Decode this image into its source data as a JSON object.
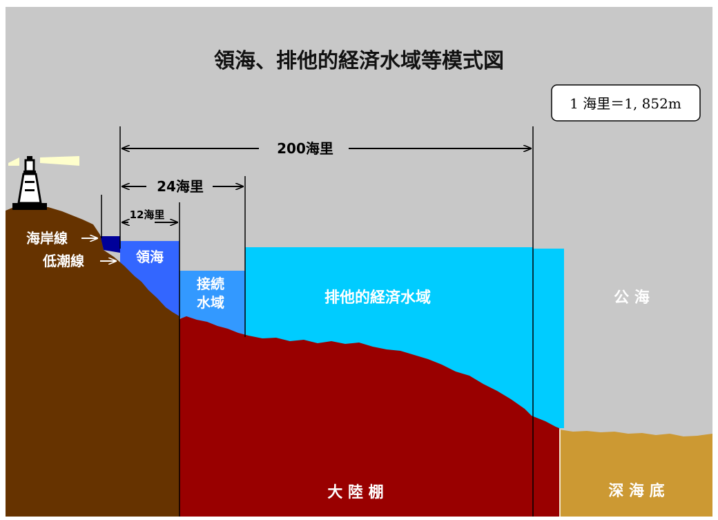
{
  "diagram": {
    "title": "領海、排他的経済水域等模式図",
    "unit_note": "1 海里＝1, 852m",
    "spans": {
      "span_200": "200海里",
      "span_24": "24海里",
      "span_12": "12海里"
    },
    "labels": {
      "coastline": "海岸線",
      "low_tide_line": "低潮線",
      "territorial_sea": "領海",
      "contiguous_zone_line1": "接続",
      "contiguous_zone_line2": "水域",
      "eez": "排他的経済水域",
      "high_seas": "公 海",
      "continental_shelf": "大 陸 棚",
      "deep_seabed": "深 海 底"
    },
    "colors": {
      "sky": "#c8c8c8",
      "land": "#663300",
      "shelf": "#990000",
      "deep_seabed": "#cc9933",
      "territorial_sea": "#3366ff",
      "contiguous_zone": "#3399ff",
      "eez": "#00ccff",
      "coast_water": "#000099"
    },
    "icons": [
      "lighthouse-icon"
    ]
  }
}
